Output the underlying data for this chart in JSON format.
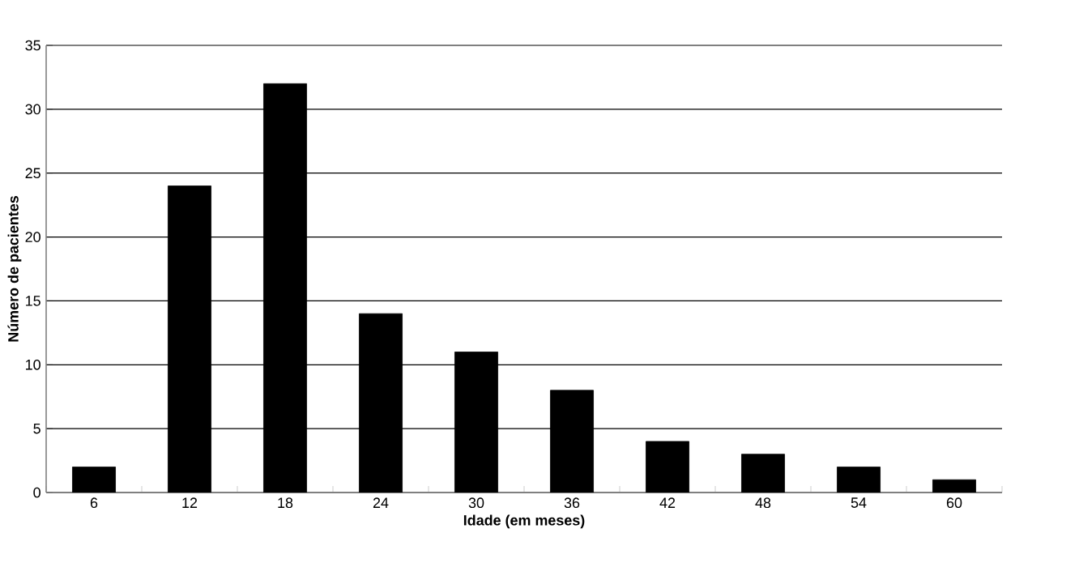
{
  "chart_data": {
    "type": "bar",
    "xlabel": "Idade (em meses)",
    "ylabel": "Número de pacientes",
    "categories": [
      "6",
      "12",
      "18",
      "24",
      "30",
      "36",
      "42",
      "48",
      "54",
      "60"
    ],
    "values": [
      2,
      24,
      32,
      14,
      11,
      8,
      4,
      3,
      2,
      1
    ],
    "color": "#000000",
    "ylim": [
      0,
      35
    ],
    "yticks": [
      0,
      5,
      10,
      15,
      20,
      25,
      30,
      35
    ],
    "grid": "y"
  }
}
